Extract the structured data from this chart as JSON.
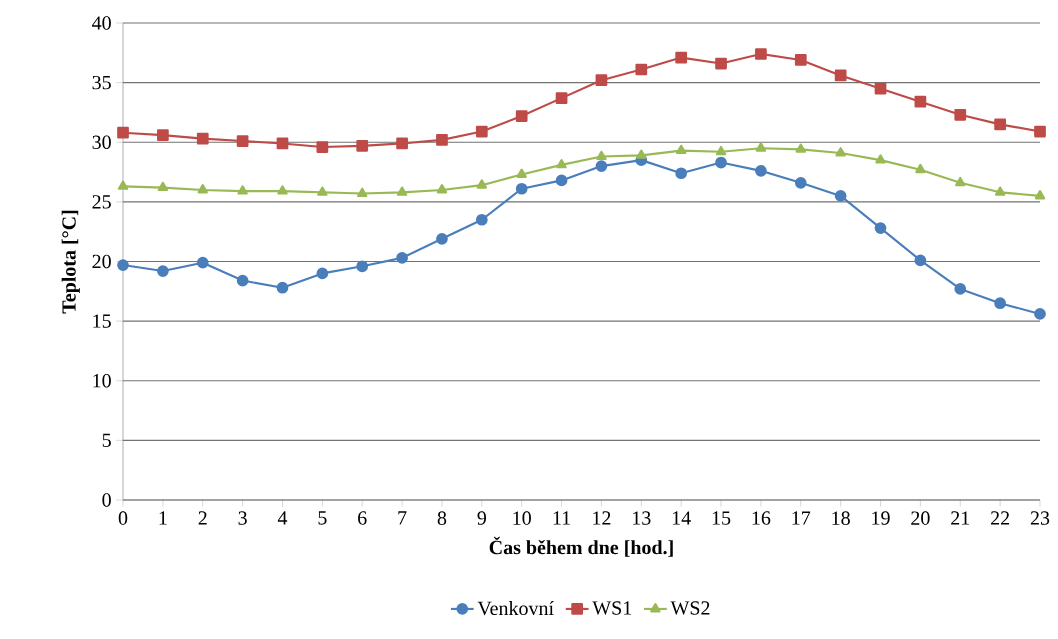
{
  "chart_data": {
    "type": "line",
    "xlabel": "Čas během dne [hod.]",
    "ylabel": "Teplota [°C]",
    "categories": [
      "0",
      "1",
      "2",
      "3",
      "4",
      "5",
      "6",
      "7",
      "8",
      "9",
      "10",
      "11",
      "12",
      "13",
      "14",
      "15",
      "16",
      "17",
      "18",
      "19",
      "20",
      "21",
      "22",
      "23"
    ],
    "series": [
      {
        "name": "Venkovní",
        "color": "#4a7ebb",
        "marker": "circle",
        "values": [
          19.7,
          19.2,
          19.9,
          18.4,
          17.8,
          19.0,
          19.6,
          20.3,
          21.9,
          23.5,
          26.1,
          26.8,
          28.0,
          28.5,
          27.4,
          28.3,
          27.6,
          26.6,
          25.5,
          22.8,
          20.1,
          17.7,
          16.5,
          15.6
        ]
      },
      {
        "name": "WS1",
        "color": "#be4b48",
        "marker": "square",
        "values": [
          30.8,
          30.6,
          30.3,
          30.1,
          29.9,
          29.6,
          29.7,
          29.9,
          30.2,
          30.9,
          32.2,
          33.7,
          35.2,
          36.1,
          37.1,
          36.6,
          37.4,
          36.9,
          35.6,
          34.5,
          33.4,
          32.3,
          31.5,
          30.9
        ]
      },
      {
        "name": "WS2",
        "color": "#98b954",
        "marker": "triangle",
        "values": [
          26.3,
          26.2,
          26.0,
          25.9,
          25.9,
          25.8,
          25.7,
          25.8,
          26.0,
          26.4,
          27.3,
          28.1,
          28.8,
          28.9,
          29.3,
          29.2,
          29.5,
          29.4,
          29.1,
          28.5,
          27.7,
          26.6,
          25.8,
          25.5
        ]
      }
    ],
    "ylim": [
      0,
      40
    ],
    "yticks": [
      0,
      5,
      10,
      15,
      20,
      25,
      30,
      35,
      40
    ],
    "grid": "y",
    "legend": "bottom",
    "line_style": "solid"
  }
}
